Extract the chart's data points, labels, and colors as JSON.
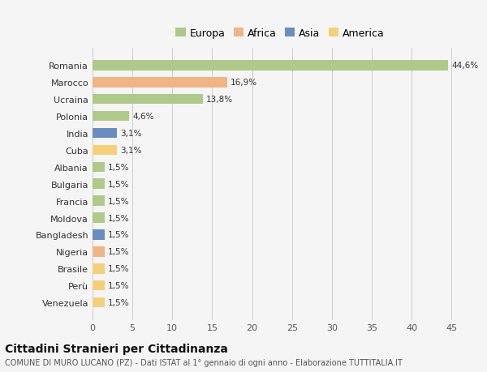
{
  "title": "Cittadini Stranieri per Cittadinanza",
  "subtitle": "COMUNE DI MURO LUCANO (PZ) - Dati ISTAT al 1° gennaio di ogni anno - Elaborazione TUTTITALIA.IT",
  "countries": [
    "Romania",
    "Marocco",
    "Ucraina",
    "Polonia",
    "India",
    "Cuba",
    "Albania",
    "Bulgaria",
    "Francia",
    "Moldova",
    "Bangladesh",
    "Nigeria",
    "Brasile",
    "Perù",
    "Venezuela"
  ],
  "values": [
    44.6,
    16.9,
    13.8,
    4.6,
    3.1,
    3.1,
    1.5,
    1.5,
    1.5,
    1.5,
    1.5,
    1.5,
    1.5,
    1.5,
    1.5
  ],
  "labels": [
    "44,6%",
    "16,9%",
    "13,8%",
    "4,6%",
    "3,1%",
    "3,1%",
    "1,5%",
    "1,5%",
    "1,5%",
    "1,5%",
    "1,5%",
    "1,5%",
    "1,5%",
    "1,5%",
    "1,5%"
  ],
  "continents": [
    "Europa",
    "Africa",
    "Europa",
    "Europa",
    "Asia",
    "America",
    "Europa",
    "Europa",
    "Europa",
    "Europa",
    "Asia",
    "Africa",
    "America",
    "America",
    "America"
  ],
  "continent_colors": {
    "Europa": "#aec98a",
    "Africa": "#f0b485",
    "Asia": "#6b8cbf",
    "America": "#f5d07a"
  },
  "legend_order": [
    "Europa",
    "Africa",
    "Asia",
    "America"
  ],
  "legend_colors": [
    "#aec98a",
    "#f0b485",
    "#6b8cbf",
    "#f5d07a"
  ],
  "background_color": "#f5f5f5",
  "xlim": [
    0,
    47
  ],
  "xticks": [
    0,
    5,
    10,
    15,
    20,
    25,
    30,
    35,
    40,
    45
  ],
  "bar_height": 0.6,
  "label_fontsize": 7.5,
  "ytick_fontsize": 8,
  "xtick_fontsize": 8,
  "legend_fontsize": 9,
  "title_fontsize": 10,
  "subtitle_fontsize": 7
}
